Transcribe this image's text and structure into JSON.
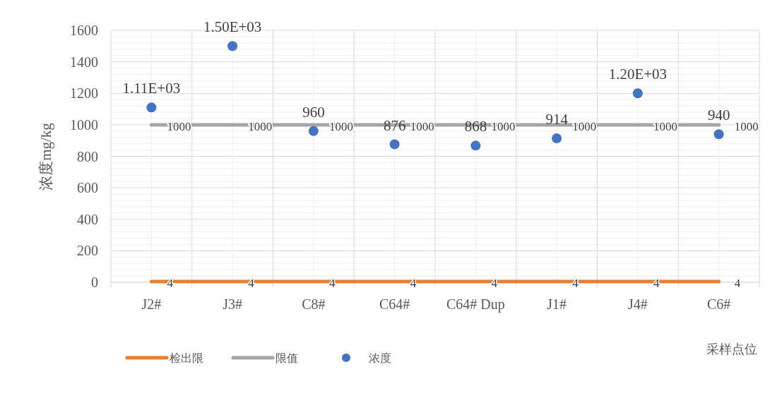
{
  "chart_data": {
    "type": "line",
    "ylabel": "浓度mg/kg",
    "xlabel": "采样点位",
    "categories": [
      "J2#",
      "J3#",
      "C8#",
      "C64#",
      "C64# Dup",
      "J1#",
      "J4#",
      "C6#"
    ],
    "series": [
      {
        "name": "检出限",
        "color": "#ed7d31",
        "values": [
          4,
          4,
          4,
          4,
          4,
          4,
          4,
          4
        ],
        "value_labels": [
          "4",
          "4",
          "4",
          "4",
          "4",
          "4",
          "4",
          "4"
        ]
      },
      {
        "name": "限值",
        "color": "#a5a5a5",
        "values": [
          1000,
          1000,
          1000,
          1000,
          1000,
          1000,
          1000,
          1000
        ],
        "value_labels": [
          "1000",
          "1000",
          "1000",
          "1000",
          "1000",
          "1000",
          "1000",
          "1000"
        ]
      },
      {
        "name": "浓度",
        "type": "scatter",
        "color": "#4472c4",
        "marker": "circle",
        "values": [
          1110,
          1500,
          960,
          876,
          868,
          914,
          1200,
          940
        ],
        "value_labels": [
          "1.11E+03",
          "1.50E+03",
          "960",
          "876",
          "868",
          "914",
          "1.20E+03",
          "940"
        ]
      }
    ],
    "ylim": [
      0,
      1600
    ],
    "yticks": [
      0,
      200,
      400,
      600,
      800,
      1000,
      1200,
      1400,
      1600
    ],
    "grid": true,
    "legend": "bottom"
  }
}
